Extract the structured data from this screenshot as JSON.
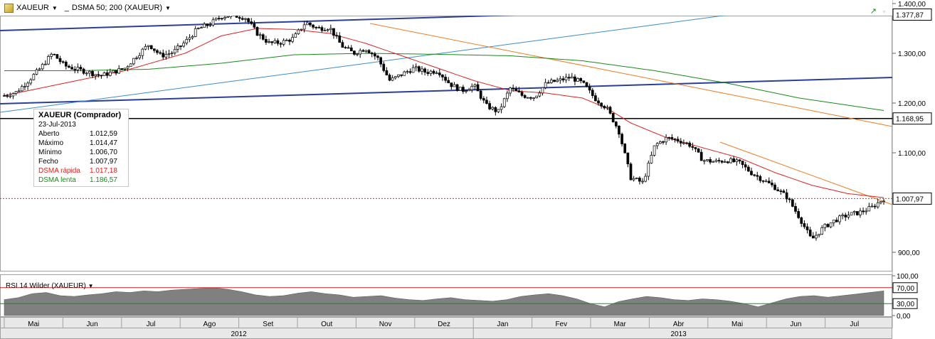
{
  "toolbar": {
    "symbol": "XAUEUR",
    "indicator": "DSMA 50; 200 (XAUEUR)"
  },
  "info_box": {
    "title": "XAUEUR (Comprador)",
    "date": "23-Jul-2013",
    "rows": [
      {
        "label": "Aberto",
        "value": "1.012,59"
      },
      {
        "label": "Máximo",
        "value": "1.014,47"
      },
      {
        "label": "Mínimo",
        "value": "1.006,70"
      },
      {
        "label": "Fecho",
        "value": "1.007,97"
      },
      {
        "label": "DSMA rápida",
        "value": "1.017,18"
      },
      {
        "label": "DSMA lenta",
        "value": "1.186,57"
      }
    ]
  },
  "rsi_title": "RSI 14 Wilder (XAUEUR)",
  "colors": {
    "fast_ma": "#e02020",
    "slow_ma": "#1a8a1a",
    "trend_blue": "#2a3f9a",
    "trend_light": "#3a8ccc",
    "trend_orange": "#f07a20"
  },
  "chart_data": [
    {
      "type": "candlestick",
      "ylim": [
        880,
        1400
      ],
      "y_ticks": [
        "1.400,00",
        "1.300,00",
        "1.200,00",
        "1.100,00",
        "900,00"
      ],
      "y_tick_values": [
        1400,
        1300,
        1200,
        1100,
        900
      ],
      "price_labels": [
        {
          "value": 1377.87,
          "text": "1.377,87"
        },
        {
          "value": 1168.95,
          "text": "1.168,95"
        },
        {
          "value": 1007.97,
          "text": "1.007,97"
        }
      ],
      "horizontal_lines": [
        1377.87,
        1168.95
      ],
      "current_price": 1007.97,
      "x_months": [
        "Mai",
        "Jun",
        "Jul",
        "Ago",
        "Set",
        "Out",
        "Nov",
        "Dez",
        "Jan",
        "Fev",
        "Mar",
        "Abr",
        "Mai",
        "Jun",
        "Jul"
      ],
      "years": [
        "2012",
        "2013"
      ],
      "price_path": [
        [
          0,
          1215
        ],
        [
          2,
          1222
        ],
        [
          4,
          1245
        ],
        [
          6,
          1270
        ],
        [
          8,
          1300
        ],
        [
          10,
          1275
        ],
        [
          12,
          1268
        ],
        [
          14,
          1262
        ],
        [
          16,
          1255
        ],
        [
          18,
          1262
        ],
        [
          20,
          1270
        ],
        [
          22,
          1295
        ],
        [
          24,
          1318
        ],
        [
          26,
          1295
        ],
        [
          28,
          1302
        ],
        [
          30,
          1322
        ],
        [
          32,
          1348
        ],
        [
          34,
          1358
        ],
        [
          36,
          1374
        ],
        [
          38,
          1376
        ],
        [
          40,
          1372
        ],
        [
          42,
          1340
        ],
        [
          44,
          1320
        ],
        [
          46,
          1322
        ],
        [
          48,
          1330
        ],
        [
          50,
          1362
        ],
        [
          52,
          1350
        ],
        [
          54,
          1352
        ],
        [
          56,
          1315
        ],
        [
          58,
          1300
        ],
        [
          60,
          1310
        ],
        [
          62,
          1290
        ],
        [
          64,
          1245
        ],
        [
          66,
          1258
        ],
        [
          68,
          1270
        ],
        [
          70,
          1262
        ],
        [
          72,
          1265
        ],
        [
          74,
          1238
        ],
        [
          76,
          1225
        ],
        [
          78,
          1235
        ],
        [
          80,
          1195
        ],
        [
          82,
          1182
        ],
        [
          84,
          1230
        ],
        [
          86,
          1215
        ],
        [
          88,
          1212
        ],
        [
          90,
          1240
        ],
        [
          92,
          1245
        ],
        [
          94,
          1252
        ],
        [
          96,
          1240
        ],
        [
          98,
          1210
        ],
        [
          100,
          1190
        ],
        [
          102,
          1145
        ],
        [
          104,
          1050
        ],
        [
          106,
          1040
        ],
        [
          108,
          1115
        ],
        [
          110,
          1130
        ],
        [
          112,
          1125
        ],
        [
          114,
          1115
        ],
        [
          116,
          1085
        ],
        [
          118,
          1082
        ],
        [
          120,
          1085
        ],
        [
          122,
          1080
        ],
        [
          124,
          1060
        ],
        [
          126,
          1045
        ],
        [
          128,
          1030
        ],
        [
          130,
          1010
        ],
        [
          132,
          970
        ],
        [
          134,
          925
        ],
        [
          136,
          950
        ],
        [
          138,
          965
        ],
        [
          140,
          975
        ],
        [
          142,
          980
        ],
        [
          144,
          990
        ],
        [
          146,
          1008
        ]
      ],
      "fast_ma_path": [
        [
          0,
          1215
        ],
        [
          10,
          1240
        ],
        [
          20,
          1265
        ],
        [
          30,
          1300
        ],
        [
          36,
          1335
        ],
        [
          42,
          1350
        ],
        [
          48,
          1348
        ],
        [
          54,
          1340
        ],
        [
          60,
          1320
        ],
        [
          66,
          1295
        ],
        [
          72,
          1270
        ],
        [
          78,
          1245
        ],
        [
          84,
          1225
        ],
        [
          90,
          1220
        ],
        [
          96,
          1210
        ],
        [
          100,
          1190
        ],
        [
          104,
          1160
        ],
        [
          110,
          1130
        ],
        [
          116,
          1110
        ],
        [
          122,
          1090
        ],
        [
          128,
          1060
        ],
        [
          134,
          1035
        ],
        [
          140,
          1018
        ],
        [
          146,
          1010
        ]
      ],
      "slow_ma_path": [
        [
          0,
          1265
        ],
        [
          12,
          1265
        ],
        [
          24,
          1268
        ],
        [
          36,
          1280
        ],
        [
          48,
          1297
        ],
        [
          60,
          1300
        ],
        [
          72,
          1298
        ],
        [
          84,
          1295
        ],
        [
          96,
          1285
        ],
        [
          108,
          1265
        ],
        [
          120,
          1240
        ],
        [
          132,
          1210
        ],
        [
          146,
          1185
        ]
      ]
    },
    {
      "type": "area",
      "name": "RSI",
      "ylim": [
        0,
        100
      ],
      "y_ticks": [
        "100,00",
        "70,00",
        "30,00",
        "0,00"
      ],
      "y_tick_values": [
        100,
        70,
        30,
        0
      ],
      "values": [
        40,
        45,
        55,
        58,
        50,
        48,
        52,
        55,
        60,
        58,
        62,
        60,
        64,
        66,
        68,
        70,
        66,
        60,
        52,
        48,
        50,
        56,
        60,
        55,
        52,
        46,
        48,
        50,
        44,
        40,
        38,
        42,
        45,
        40,
        38,
        36,
        40,
        48,
        52,
        55,
        50,
        42,
        30,
        22,
        35,
        42,
        48,
        45,
        40,
        38,
        42,
        40,
        36,
        30,
        22,
        32,
        42,
        48,
        50,
        46,
        50,
        54,
        58,
        62
      ]
    }
  ]
}
